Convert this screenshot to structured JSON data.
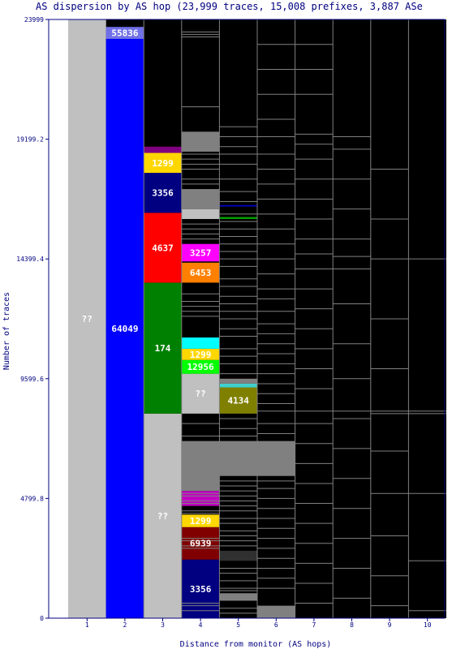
{
  "chart_data": {
    "type": "bar",
    "title": "AS dispersion by AS hop (23,999 traces, 15,008 prefixes, 3,887 ASe",
    "xlabel": "Distance from monitor (AS hops)",
    "ylabel": "Number of traces",
    "ylim": [
      0,
      23999
    ],
    "y_ticks": [
      "0",
      "4799.8",
      "9599.6",
      "14399.4",
      "19199.2",
      "23999"
    ],
    "categories": [
      "1",
      "2",
      "3",
      "4",
      "5",
      "6",
      "7",
      "8",
      "9",
      "10"
    ],
    "colors": {
      "plot_bg": "#000000",
      "frame": "#000080",
      "unknown": "#c0c0c0",
      "minor_line": "#808080"
    },
    "segments": [
      {
        "hop": 1,
        "y0": 0,
        "y1": 23999,
        "color": "#c0c0c0",
        "label": "??"
      },
      {
        "hop": 2,
        "y0": 0,
        "y1": 23220,
        "color": "#0000ff",
        "label": "64049"
      },
      {
        "hop": 2,
        "y0": 23220,
        "y1": 23700,
        "color": "#7070e8",
        "label": "55836"
      },
      {
        "hop": 3,
        "y0": 0,
        "y1": 8200,
        "color": "#c0c0c0",
        "label": "??"
      },
      {
        "hop": 3,
        "y0": 8200,
        "y1": 13450,
        "color": "#008000",
        "label": "174"
      },
      {
        "hop": 3,
        "y0": 13450,
        "y1": 16250,
        "color": "#ff0000",
        "label": "4637"
      },
      {
        "hop": 3,
        "y0": 16250,
        "y1": 17850,
        "color": "#000080",
        "label": "3356"
      },
      {
        "hop": 3,
        "y0": 17850,
        "y1": 18650,
        "color": "#ffd700",
        "label": "1299"
      },
      {
        "hop": 3,
        "y0": 18650,
        "y1": 18900,
        "color": "#800080",
        "label": ""
      },
      {
        "hop": 4,
        "y0": 0,
        "y1": 2350,
        "color": "#000080",
        "label": "3356"
      },
      {
        "hop": 4,
        "y0": 2350,
        "y1": 3650,
        "color": "#800000",
        "label": "6939"
      },
      {
        "hop": 4,
        "y0": 3650,
        "y1": 4150,
        "color": "#ffd700",
        "label": "1299"
      },
      {
        "hop": 4,
        "y0": 4500,
        "y1": 5100,
        "color": "#c000c0",
        "label": ""
      },
      {
        "hop": 4,
        "y0": 5100,
        "y1": 7100,
        "color": "#808080",
        "label": ""
      },
      {
        "hop": 4,
        "y0": 8200,
        "y1": 9800,
        "color": "#c0c0c0",
        "label": "??"
      },
      {
        "hop": 4,
        "y0": 9800,
        "y1": 10350,
        "color": "#00ff00",
        "label": "12956"
      },
      {
        "hop": 4,
        "y0": 10350,
        "y1": 10800,
        "color": "#ffd700",
        "label": "1299"
      },
      {
        "hop": 4,
        "y0": 10800,
        "y1": 11250,
        "color": "#00ffff",
        "label": ""
      },
      {
        "hop": 4,
        "y0": 13450,
        "y1": 14250,
        "color": "#ff8000",
        "label": "6453"
      },
      {
        "hop": 4,
        "y0": 14300,
        "y1": 15000,
        "color": "#ff00ff",
        "label": "3257"
      },
      {
        "hop": 4,
        "y0": 16000,
        "y1": 16400,
        "color": "#c0c0c0",
        "label": ""
      },
      {
        "hop": 4,
        "y0": 16400,
        "y1": 17200,
        "color": "#808080",
        "label": ""
      },
      {
        "hop": 4,
        "y0": 18700,
        "y1": 19500,
        "color": "#808080",
        "label": ""
      },
      {
        "hop": 5,
        "y0": 700,
        "y1": 1000,
        "color": "#808080",
        "label": ""
      },
      {
        "hop": 5,
        "y0": 2300,
        "y1": 2700,
        "color": "#303030",
        "label": ""
      },
      {
        "hop": 5,
        "y0": 5700,
        "y1": 7100,
        "color": "#808080",
        "label": ""
      },
      {
        "hop": 5,
        "y0": 8200,
        "y1": 9250,
        "color": "#808000",
        "label": "4134"
      },
      {
        "hop": 5,
        "y0": 9250,
        "y1": 9400,
        "color": "#40d0d0",
        "label": ""
      },
      {
        "hop": 5,
        "y0": 9400,
        "y1": 9600,
        "color": "#808080",
        "label": ""
      },
      {
        "hop": 5,
        "y0": 16000,
        "y1": 16080,
        "color": "#00a000",
        "label": ""
      },
      {
        "hop": 5,
        "y0": 16500,
        "y1": 16560,
        "color": "#0000c0",
        "label": ""
      },
      {
        "hop": 6,
        "y0": 5700,
        "y1": 7100,
        "color": "#808080",
        "label": ""
      },
      {
        "hop": 6,
        "y0": 0,
        "y1": 500,
        "color": "#808080",
        "label": ""
      }
    ],
    "thin_lines": {
      "4": [
        300,
        500,
        600,
        2800,
        2900,
        3100,
        3200,
        4200,
        4300,
        4600,
        4700,
        4900,
        5000,
        7300,
        7800,
        12100,
        12300,
        12500,
        12700,
        13000,
        15200,
        15400,
        15600,
        15800,
        17400,
        17600,
        18000,
        18200,
        18400,
        18600,
        20500,
        23300,
        23400,
        23500
      ],
      "5": [
        200,
        400,
        1100,
        1200,
        1500,
        1800,
        2000,
        2900,
        3100,
        3300,
        3500,
        3800,
        4000,
        4300,
        4500,
        4700,
        4900,
        5100,
        5300,
        5500,
        7300,
        7600,
        8000,
        9800,
        10200,
        10500,
        10800,
        11300,
        11600,
        12000,
        12300,
        12600,
        12900,
        13300,
        13600,
        14100,
        14400,
        14700,
        15000,
        15300,
        15600,
        15900,
        16200,
        16700,
        17100,
        17600,
        18200,
        18600,
        18900,
        19300,
        19700
      ],
      "6": [
        1200,
        1600,
        2000,
        2400,
        2800,
        3200,
        3600,
        4000,
        4400,
        4800,
        5200,
        5500,
        7400,
        7800,
        8300,
        8600,
        9000,
        9400,
        9800,
        10200,
        10600,
        11000,
        11400,
        11800,
        12300,
        12800,
        13200,
        13800,
        14400,
        15000,
        15600,
        16200,
        16800,
        17400,
        18000,
        18600,
        19300,
        20000,
        21000,
        22000,
        23000
      ],
      "7": [
        600,
        1400,
        2200,
        3000,
        3800,
        4600,
        5400,
        6200,
        7000,
        7800,
        8300,
        9200,
        10000,
        10800,
        11600,
        12400,
        13200,
        14000,
        14600,
        15200,
        16000,
        16800,
        17600,
        18400,
        19000,
        19400,
        21000,
        22000,
        23000
      ],
      "8": [
        800,
        2000,
        3200,
        4400,
        5600,
        6800,
        8000,
        8300,
        9600,
        11000,
        12600,
        14000,
        14500,
        15200,
        16400,
        17600,
        18800,
        19300
      ],
      "9": [
        500,
        1700,
        3300,
        5000,
        6700,
        8200,
        8300,
        10000,
        12000,
        14400,
        16000,
        18000
      ],
      "10": [
        300,
        2300,
        5000,
        8200,
        8300,
        14400
      ]
    }
  }
}
